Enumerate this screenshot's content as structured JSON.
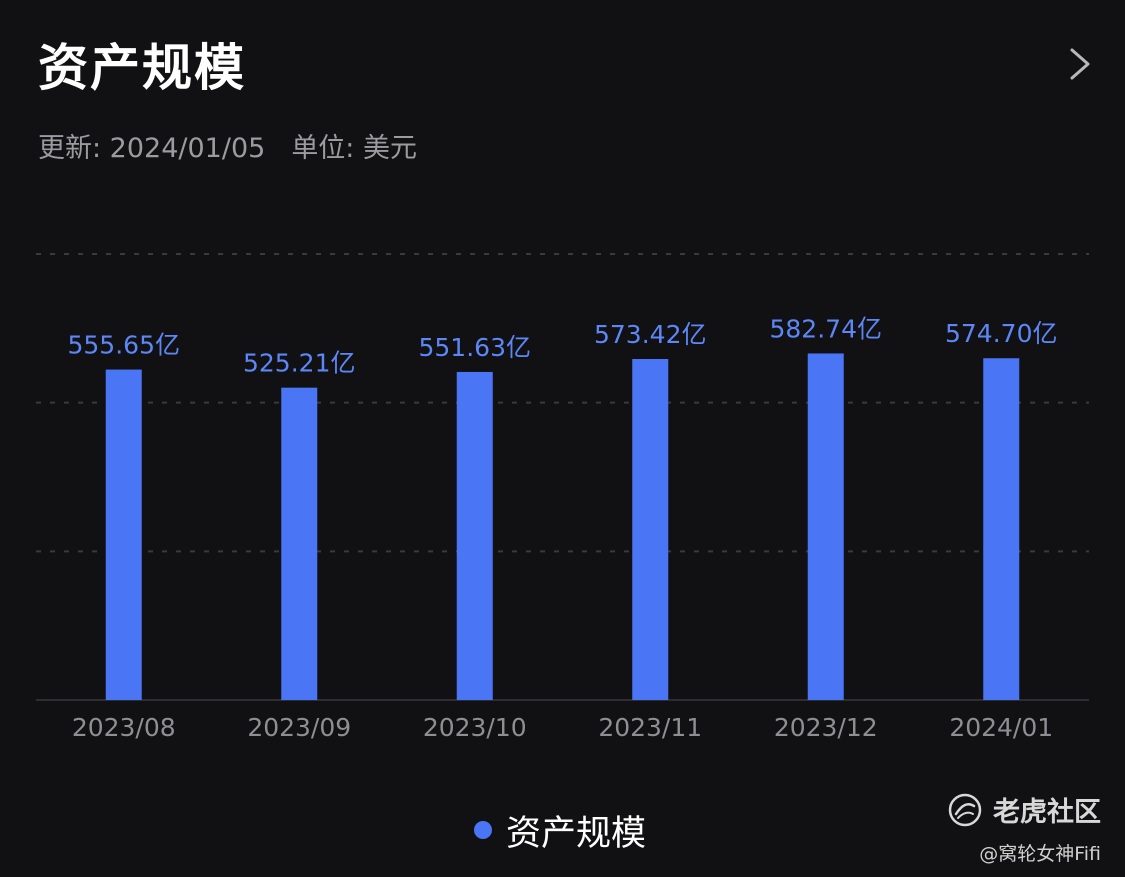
{
  "header": {
    "title": "资产规模",
    "updated": "更新: 2024/01/05",
    "unit": "单位: 美元"
  },
  "colors": {
    "bar": "#4A76F6",
    "label": "#5D86F7",
    "grid": "#3a3a3e",
    "axis_text": "#8e8e93"
  },
  "icons": {
    "detail": "chevron-right-icon",
    "brand": "tiger-logo-icon"
  },
  "chart_data": {
    "type": "bar",
    "categories": [
      "2023/08",
      "2023/09",
      "2023/10",
      "2023/11",
      "2023/12",
      "2024/01"
    ],
    "series": [
      {
        "name": "资产规模",
        "values": [
          555.65,
          525.21,
          551.63,
          573.42,
          582.74,
          574.7
        ],
        "labels": [
          "555.65亿",
          "525.21亿",
          "551.63亿",
          "573.42亿",
          "582.74亿",
          "574.70亿"
        ]
      }
    ],
    "ylim": [
      0,
      750
    ],
    "grid": true,
    "legend": "bottom-center"
  },
  "watermark": {
    "brand": "老虎社区",
    "user": "@窝轮女神Fifi"
  }
}
